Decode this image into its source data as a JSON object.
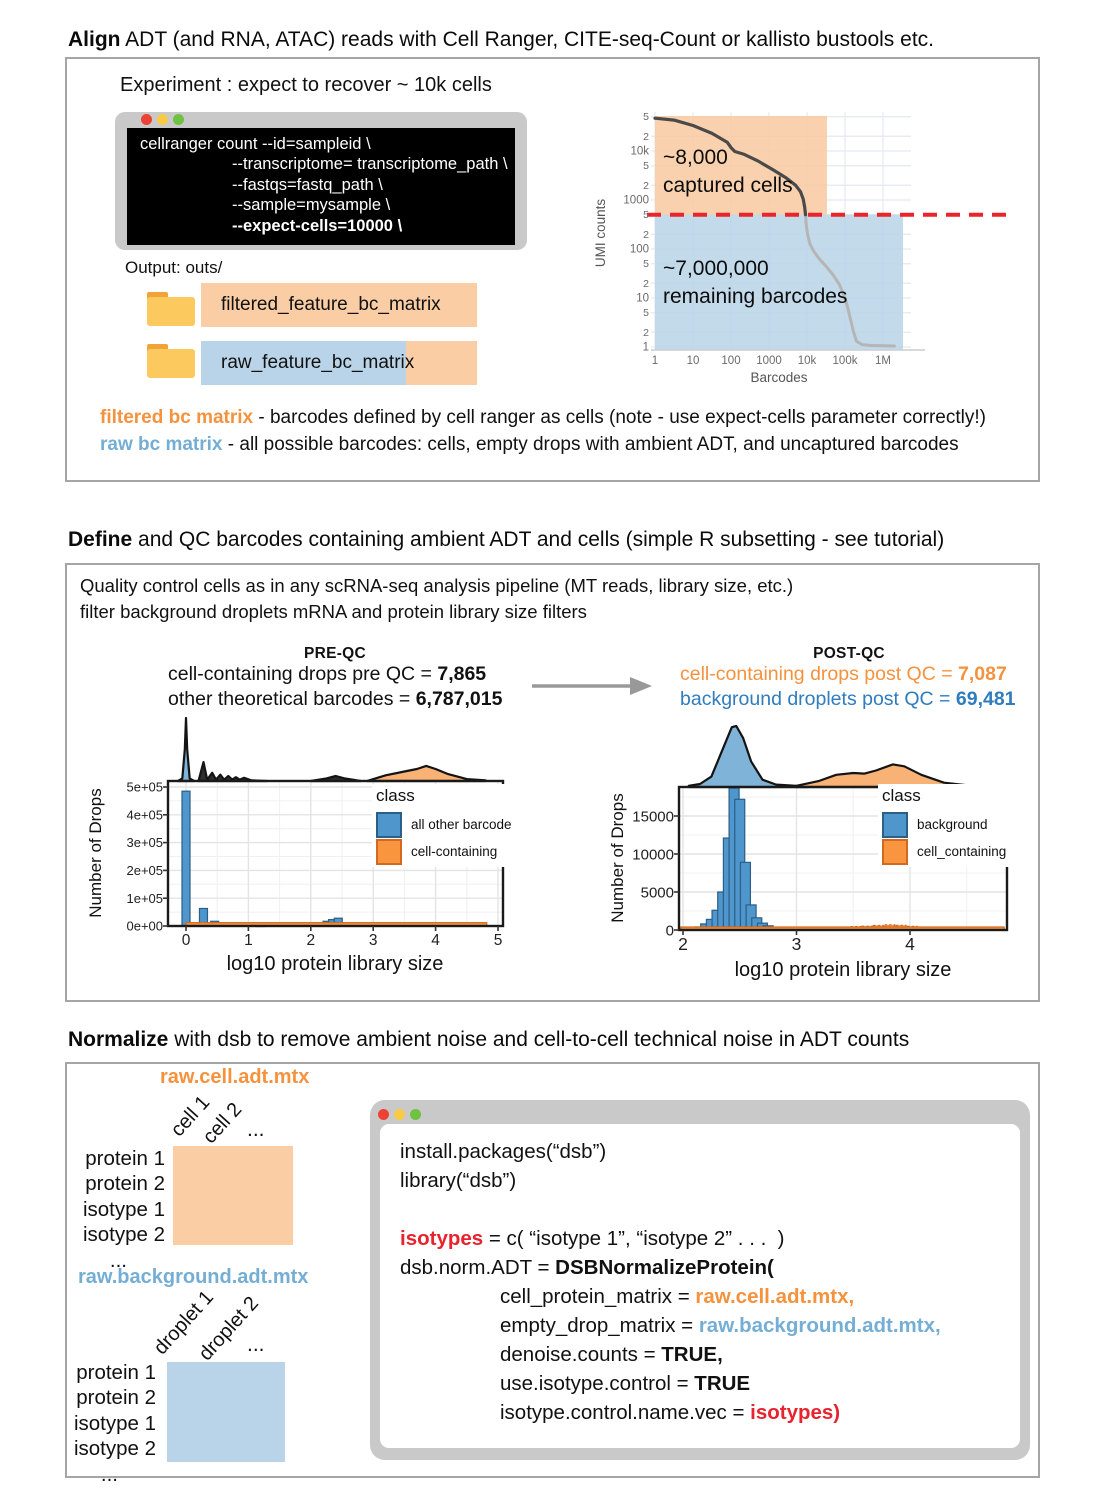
{
  "sections": {
    "align": {
      "title_bold": "Align",
      "title_rest": " ADT (and RNA, ATAC) reads with Cell Ranger, CITE-seq-Count or kallisto bustools etc.",
      "experiment_note": "Experiment : expect to recover ~ 10k cells",
      "terminal": {
        "lines": [
          "cellranger count --id=sampleid \\",
          "--transcriptome= transcriptome_path \\",
          "--fastqs=fastq_path \\",
          "--sample=mysample \\",
          "--expect-cells=10000 \\"
        ]
      },
      "output_label": "Output: outs/",
      "folders": [
        "filtered_feature_bc_matrix",
        "raw_feature_bc_matrix"
      ],
      "legend": [
        {
          "term": "filtered bc matrix",
          "desc": " - barcodes defined by cell ranger as cells (note - use expect-cells parameter correctly!)"
        },
        {
          "term": "raw bc matrix",
          "desc": " - all possible barcodes: cells, empty drops with ambient ADT, and uncaptured barcodes"
        }
      ]
    },
    "define": {
      "title_bold": "Define",
      "title_rest": " and QC barcodes containing ambient ADT and cells (simple R subsetting - see tutorial)",
      "intro": [
        "Quality control cells as in any scRNA-seq analysis pipeline (MT reads, library size, etc.)",
        "filter background droplets mRNA and protein library size filters"
      ],
      "pre_stats": [
        {
          "label": "cell-containing drops pre QC = ",
          "value": "7,865"
        },
        {
          "label": "other theoretical barcodes = ",
          "value": "6,787,015"
        }
      ],
      "post_stats": [
        {
          "label": "cell-containing drops post QC = ",
          "value": "7,087"
        },
        {
          "label": "background droplets post QC = ",
          "value": "69,481"
        }
      ]
    },
    "normalize": {
      "title_bold": "Normalize",
      "title_rest": " with dsb to remove ambient noise and cell-to-cell technical noise in ADT counts",
      "matrices": [
        {
          "title": "raw.cell.adt.mtx",
          "cols": [
            "cell 1",
            "cell 2",
            "..."
          ],
          "rows": [
            "protein 1",
            "protein 2",
            "isotype 1",
            "isotype 2",
            "..."
          ]
        },
        {
          "title": "raw.background.adt.mtx",
          "cols": [
            "droplet 1",
            "droplet 2",
            "..."
          ],
          "rows": [
            "protein 1",
            "protein 2",
            "isotype 1",
            "isotype 2",
            "..."
          ]
        }
      ],
      "code_lines": [
        [
          "install.packages(“dsb”)"
        ],
        [
          "library(“dsb”)"
        ],
        [
          ""
        ],
        [
          "isotypes",
          " = c( “isotype 1”, “isotype 2” . . .  )"
        ],
        [
          "dsb.norm.ADT = ",
          "DSBNormalizeProtein("
        ],
        [
          "cell_protein_matrix = ",
          "raw.cell.adt.mtx,"
        ],
        [
          "empty_drop_matrix = ",
          "raw.background.adt.mtx,"
        ],
        [
          "denoise.counts = ",
          "TRUE,"
        ],
        [
          "use.isotype.control = ",
          "TRUE"
        ],
        [
          "isotype.control.name.vec = ",
          "isotypes)"
        ]
      ]
    }
  },
  "colors": {
    "orange_text": "#F5923E",
    "light_blue_text": "#74AED4",
    "post_blue_text": "#2F7CBE",
    "code_red": "#E8232E",
    "bar_blue": "#4E96CB",
    "bar_blue_border": "#2B5F87",
    "bar_orange": "#F9943F",
    "bar_orange_border": "#D2691E",
    "region_orange": "#F9C9A0",
    "region_blue": "#B9D4E8",
    "threshold_red": "#EA2428"
  },
  "chart_data": [
    {
      "id": "barcode-rank-knee",
      "type": "line",
      "xlabel": "Barcodes",
      "ylabel": "UMI counts",
      "x_scale": "log10",
      "y_scale": "log10",
      "x_ticks": [
        {
          "d": 0,
          "label": "1"
        },
        {
          "d": 1,
          "label": "10"
        },
        {
          "d": 2,
          "label": "100"
        },
        {
          "d": 3,
          "label": "1000"
        },
        {
          "d": 4,
          "label": "10k"
        },
        {
          "d": 5,
          "label": "100k"
        },
        {
          "d": 6,
          "label": "1M"
        }
      ],
      "y_ticks": [
        {
          "d": 0,
          "label": "1"
        },
        {
          "d": 0.301,
          "label": "2"
        },
        {
          "d": 0.699,
          "label": "5"
        },
        {
          "d": 1,
          "label": "10"
        },
        {
          "d": 1.301,
          "label": "2"
        },
        {
          "d": 1.699,
          "label": "5"
        },
        {
          "d": 2,
          "label": "100"
        },
        {
          "d": 2.301,
          "label": "2"
        },
        {
          "d": 2.699,
          "label": "5"
        },
        {
          "d": 3,
          "label": "1000"
        },
        {
          "d": 3.301,
          "label": "2"
        },
        {
          "d": 3.699,
          "label": "5"
        },
        {
          "d": 4,
          "label": "10k"
        },
        {
          "d": 4.301,
          "label": "2"
        },
        {
          "d": 4.699,
          "label": "5"
        }
      ],
      "threshold_umi": 500,
      "regions": [
        {
          "value": "~8,000",
          "text": "captured cells",
          "color": "#F9C9A0"
        },
        {
          "value": "~7,000,000",
          "text": "remaining barcodes",
          "color": "#B9D4E8"
        }
      ],
      "curve_log10": [
        [
          0,
          4.67
        ],
        [
          0.5,
          4.63
        ],
        [
          1.0,
          4.52
        ],
        [
          1.5,
          4.36
        ],
        [
          1.9,
          4.18
        ],
        [
          2.0,
          4.07
        ],
        [
          2.1,
          3.99
        ],
        [
          2.35,
          3.93
        ],
        [
          2.7,
          3.8
        ],
        [
          3.1,
          3.62
        ],
        [
          3.45,
          3.45
        ],
        [
          3.7,
          3.3
        ],
        [
          3.83,
          3.17
        ],
        [
          3.9,
          3.02
        ],
        [
          3.94,
          2.85
        ],
        [
          3.96,
          2.7
        ],
        [
          3.98,
          2.5
        ],
        [
          4.02,
          2.28
        ],
        [
          4.08,
          2.1
        ],
        [
          4.18,
          1.95
        ],
        [
          4.32,
          1.8
        ],
        [
          4.5,
          1.65
        ],
        [
          4.68,
          1.48
        ],
        [
          4.85,
          1.28
        ],
        [
          5.0,
          1.0
        ],
        [
          5.08,
          0.78
        ],
        [
          5.15,
          0.55
        ],
        [
          5.22,
          0.32
        ],
        [
          5.3,
          0.12
        ],
        [
          5.45,
          0.05
        ],
        [
          5.7,
          0.03
        ],
        [
          6.3,
          0.02
        ]
      ]
    },
    {
      "id": "pre-qc-histogram",
      "type": "bar",
      "title": "PRE-QC",
      "xlabel": "log10 protein library size",
      "ylabel": "Number of Drops",
      "legend_title": "class",
      "x_ticks": [
        {
          "v": 0,
          "label": "0"
        },
        {
          "v": 1,
          "label": "1"
        },
        {
          "v": 2,
          "label": "2"
        },
        {
          "v": 3,
          "label": "3"
        },
        {
          "v": 4,
          "label": "4"
        },
        {
          "v": 5,
          "label": "5"
        }
      ],
      "y_ticks": [
        {
          "v": 0,
          "label": "0e+00"
        },
        {
          "v": 100000,
          "label": "1e+05"
        },
        {
          "v": 200000,
          "label": "2e+05"
        },
        {
          "v": 300000,
          "label": "3e+05"
        },
        {
          "v": 400000,
          "label": "4e+05"
        },
        {
          "v": 500000,
          "label": "5e+05"
        }
      ],
      "series": [
        {
          "name": "all other barcode",
          "fill": "#4E96CB",
          "stroke": "#2B5F87",
          "bars": [
            [
              0,
              485000
            ],
            [
              0.28,
              63000
            ],
            [
              0.46,
              17000
            ],
            [
              0.56,
              11000
            ],
            [
              0.65,
              9000
            ],
            [
              0.74,
              8000
            ],
            [
              0.83,
              7000
            ],
            [
              0.92,
              6000
            ],
            [
              1.01,
              5000
            ],
            [
              1.1,
              3500
            ],
            [
              1.19,
              2500
            ],
            [
              2.17,
              7000
            ],
            [
              2.26,
              17000
            ],
            [
              2.35,
              23000
            ],
            [
              2.44,
              28000
            ],
            [
              2.53,
              10000
            ],
            [
              2.62,
              3500
            ]
          ]
        },
        {
          "name": "cell-containing",
          "fill": "#F9943F",
          "stroke": "#D2691E",
          "strip": {
            "from": 0,
            "to": 4.82,
            "count": 12000
          }
        }
      ],
      "density": [
        {
          "fill": "#7FB3D7",
          "points": [
            [
              -0.13,
              0
            ],
            [
              -0.06,
              0.04
            ],
            [
              -0.02,
              0.5
            ],
            [
              0,
              1.0
            ],
            [
              0.02,
              0.5
            ],
            [
              0.06,
              0.04
            ],
            [
              0.13,
              0
            ]
          ]
        },
        {
          "fill": "#2E2E2E",
          "points": [
            [
              0.2,
              0
            ],
            [
              0.28,
              0.3
            ],
            [
              0.34,
              0.02
            ],
            [
              0.42,
              0.13
            ],
            [
              0.48,
              0.02
            ],
            [
              0.55,
              0.1
            ],
            [
              0.61,
              0.02
            ],
            [
              0.68,
              0.08
            ],
            [
              0.74,
              0.02
            ],
            [
              0.8,
              0.06
            ],
            [
              0.86,
              0.02
            ],
            [
              0.93,
              0.05
            ],
            [
              1.05,
              0.01
            ],
            [
              1.3,
              0
            ]
          ]
        },
        {
          "fill": "#2E2E2E",
          "points": [
            [
              2.0,
              0
            ],
            [
              2.25,
              0.04
            ],
            [
              2.4,
              0.08
            ],
            [
              2.55,
              0.04
            ],
            [
              2.8,
              0
            ]
          ]
        },
        {
          "fill": "#F9B275",
          "points": [
            [
              2.9,
              0
            ],
            [
              3.2,
              0.09
            ],
            [
              3.5,
              0.15
            ],
            [
              3.7,
              0.19
            ],
            [
              3.85,
              0.24
            ],
            [
              4.0,
              0.19
            ],
            [
              4.2,
              0.11
            ],
            [
              4.5,
              0.03
            ],
            [
              4.8,
              0.01
            ]
          ]
        }
      ]
    },
    {
      "id": "post-qc-histogram",
      "type": "bar",
      "title": "POST-QC",
      "xlabel": "log10 protein library size",
      "ylabel": "Number of Drops",
      "legend_title": "class",
      "x_ticks": [
        {
          "v": 2,
          "label": "2"
        },
        {
          "v": 3,
          "label": "3"
        },
        {
          "v": 4,
          "label": "4"
        }
      ],
      "y_ticks": [
        {
          "v": 0,
          "label": "0"
        },
        {
          "v": 5000,
          "label": "5000"
        },
        {
          "v": 10000,
          "label": "10000"
        },
        {
          "v": 15000,
          "label": "15000"
        }
      ],
      "series": [
        {
          "name": "background",
          "fill": "#4E96CB",
          "stroke": "#2B5F87",
          "bars": [
            [
              2.1,
              200
            ],
            [
              2.15,
              400
            ],
            [
              2.2,
              800
            ],
            [
              2.25,
              1400
            ],
            [
              2.3,
              2600
            ],
            [
              2.35,
              5000
            ],
            [
              2.4,
              12100
            ],
            [
              2.45,
              18900
            ],
            [
              2.5,
              17200
            ],
            [
              2.55,
              8900
            ],
            [
              2.6,
              3300
            ],
            [
              2.65,
              1600
            ],
            [
              2.7,
              900
            ],
            [
              2.75,
              550
            ],
            [
              2.8,
              350
            ],
            [
              2.85,
              220
            ]
          ]
        },
        {
          "name": "cell_containing",
          "fill": "#F9943F",
          "stroke": "#D2691E",
          "dashed": true,
          "bars": [
            [
              3.32,
              250
            ],
            [
              3.42,
              350
            ],
            [
              3.52,
              450
            ],
            [
              3.62,
              500
            ],
            [
              3.72,
              600
            ],
            [
              3.82,
              680
            ],
            [
              3.92,
              620
            ],
            [
              4.02,
              480
            ],
            [
              4.12,
              330
            ],
            [
              4.22,
              220
            ]
          ],
          "strip": {
            "from": 1.98,
            "to": 4.83,
            "count": 350
          }
        }
      ],
      "density": [
        {
          "fill": "#7FB3D7",
          "points": [
            [
              2.05,
              0.02
            ],
            [
              2.15,
              0.05
            ],
            [
              2.25,
              0.17
            ],
            [
              2.35,
              0.62
            ],
            [
              2.43,
              0.98
            ],
            [
              2.47,
              1.0
            ],
            [
              2.53,
              0.8
            ],
            [
              2.6,
              0.42
            ],
            [
              2.7,
              0.12
            ],
            [
              2.82,
              0.04
            ],
            [
              3.0,
              0.02
            ],
            [
              3.1,
              0.01
            ]
          ]
        },
        {
          "fill": "#F9B275",
          "points": [
            [
              3.0,
              0.02
            ],
            [
              3.2,
              0.1
            ],
            [
              3.35,
              0.2
            ],
            [
              3.5,
              0.23
            ],
            [
              3.6,
              0.22
            ],
            [
              3.7,
              0.27
            ],
            [
              3.85,
              0.37
            ],
            [
              3.95,
              0.34
            ],
            [
              4.1,
              0.2
            ],
            [
              4.3,
              0.07
            ],
            [
              4.55,
              0.02
            ],
            [
              4.75,
              0.01
            ]
          ]
        }
      ]
    }
  ]
}
